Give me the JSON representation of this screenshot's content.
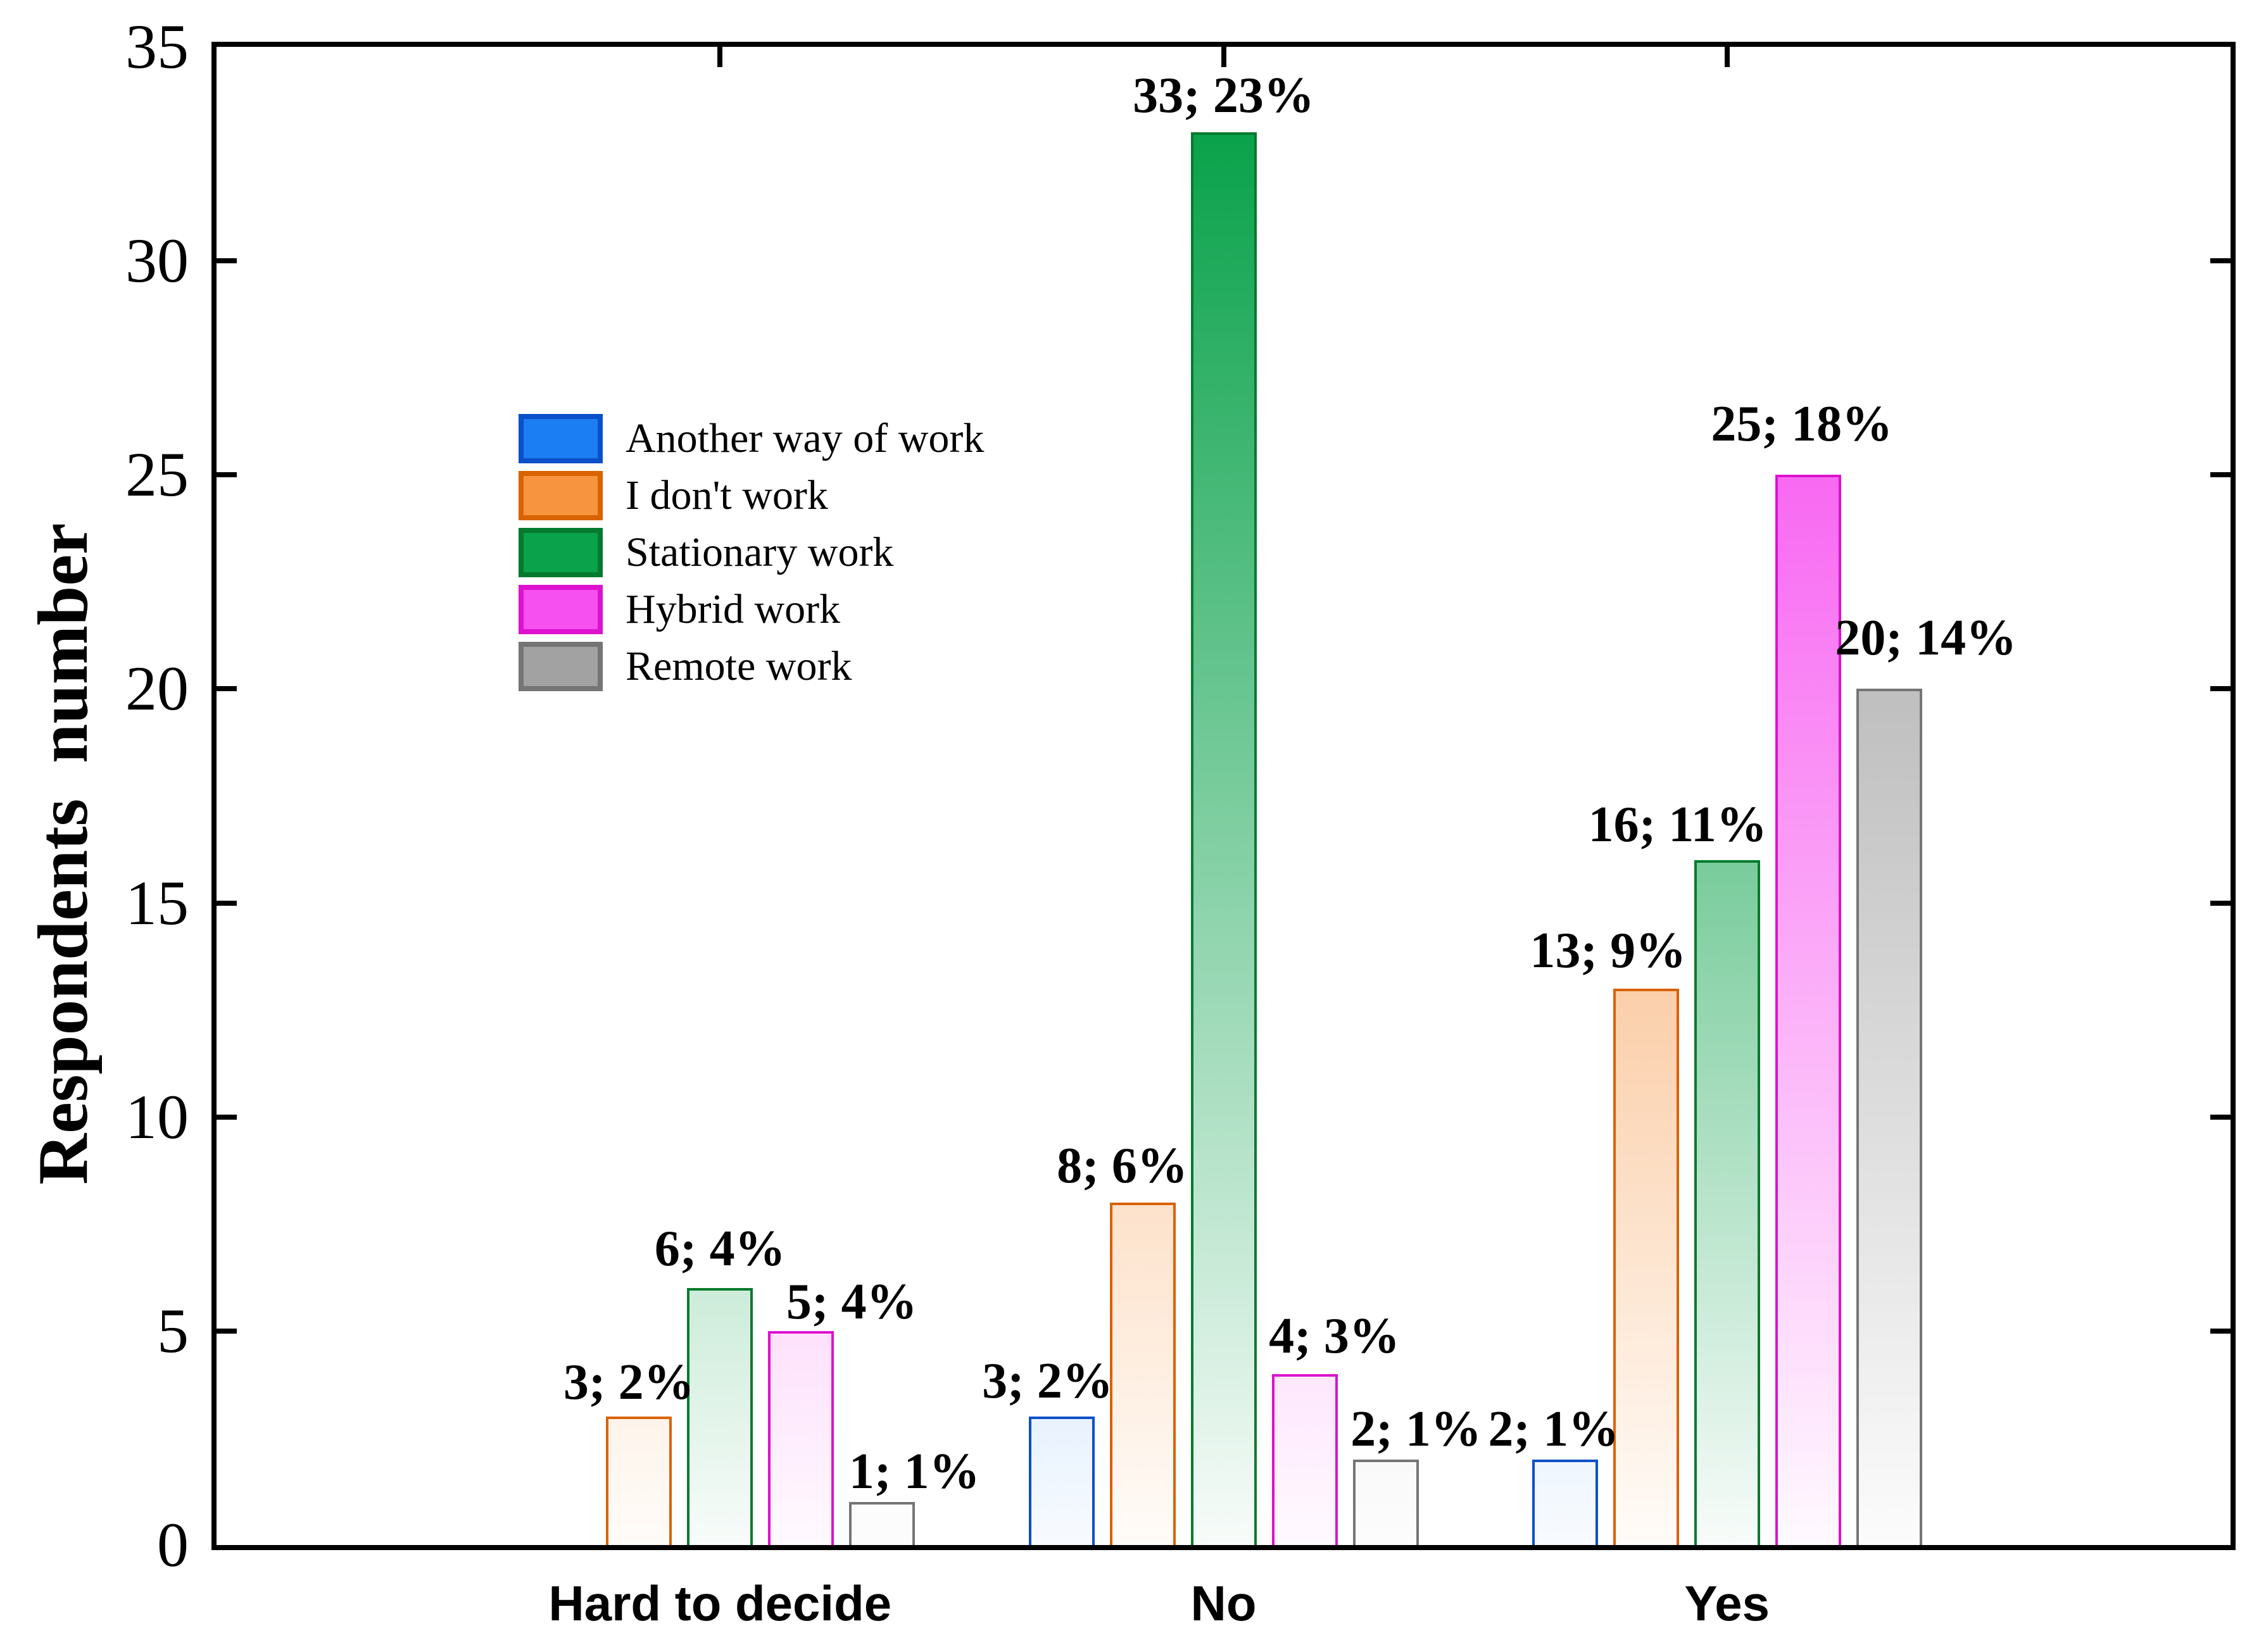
{
  "chart_data": {
    "type": "bar",
    "title": "",
    "xlabel": "",
    "ylabel": "Respondents  number",
    "ylim": [
      0,
      35
    ],
    "ytick_step": 5,
    "ytick_labels": [
      "0",
      "5",
      "10",
      "15",
      "20",
      "25",
      "30",
      "35"
    ],
    "grid": false,
    "legend_position": "upper-left-inside",
    "categories": [
      "Hard to decide",
      "No",
      "Yes"
    ],
    "series": [
      {
        "name": "Another way of work",
        "color": "#1B7EF2",
        "border": "#0A50C8",
        "values": [
          0,
          3,
          2
        ],
        "labels": [
          null,
          {
            "text": "3; 2%",
            "dx": -22,
            "gap": 28
          },
          {
            "text": "2; 1%",
            "dx": -18,
            "gap": 20
          }
        ]
      },
      {
        "name": "I don't work",
        "color": "#F79440",
        "border": "#D96300",
        "values": [
          3,
          8,
          13
        ],
        "labels": [
          {
            "text": "3; 2%",
            "dx": -16,
            "gap": 26
          },
          {
            "text": "8; 6%",
            "dx": -32,
            "gap": 30
          },
          {
            "text": "13; 9%",
            "dx": -60,
            "gap": 32
          }
        ]
      },
      {
        "name": "Stationary work",
        "color": "#0AA24B",
        "border": "#057A2E",
        "values": [
          6,
          33,
          16
        ],
        "labels": [
          {
            "text": "6; 4%",
            "dx": 0,
            "gap": 34
          },
          {
            "text": "33; 23%",
            "dx": 0,
            "gap": 30
          },
          {
            "text": "16; 11%",
            "dx": -78,
            "gap": 28
          }
        ]
      },
      {
        "name": "Hybrid work",
        "color": "#F750F0",
        "border": "#DD12CE",
        "values": [
          5,
          4,
          25
        ],
        "labels": [
          {
            "text": "5; 4%",
            "dx": 80,
            "gap": 18
          },
          {
            "text": "4; 3%",
            "dx": 47,
            "gap": 32
          },
          {
            "text": "25; 18%",
            "dx": -10,
            "gap": 52
          }
        ]
      },
      {
        "name": "Remote work",
        "color": "#A2A2A2",
        "border": "#757575",
        "values": [
          1,
          2,
          20
        ],
        "labels": [
          {
            "text": "1; 1%",
            "dx": 51,
            "gap": 20
          },
          {
            "text": "2; 1%",
            "dx": 48,
            "gap": 20
          },
          {
            "text": "20; 14%",
            "dx": 58,
            "gap": 52
          }
        ]
      }
    ]
  },
  "colors": {
    "axis": "#000000",
    "background": "#ffffff",
    "text": "#000000"
  }
}
